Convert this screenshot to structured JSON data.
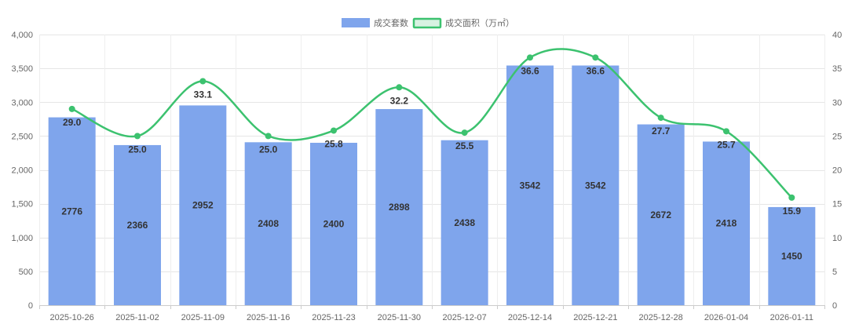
{
  "chart_data": {
    "type": "bar",
    "categories": [
      "2025-10-26",
      "2025-11-02",
      "2025-11-09",
      "2025-11-16",
      "2025-11-23",
      "2025-11-30",
      "2025-12-07",
      "2025-12-14",
      "2025-12-21",
      "2025-12-28",
      "2026-01-04",
      "2026-01-11"
    ],
    "series": [
      {
        "name": "成交套数",
        "type": "bar",
        "axis": "left",
        "color": "#7fa5ec",
        "values": [
          2776,
          2366,
          2952,
          2408,
          2400,
          2898,
          2438,
          3542,
          3542,
          2672,
          2418,
          1450
        ]
      },
      {
        "name": "成交面积（万㎡）",
        "type": "line",
        "axis": "right",
        "color": "#3cc26f",
        "values": [
          29.0,
          25.0,
          33.1,
          25.0,
          25.8,
          32.2,
          25.5,
          36.6,
          36.6,
          27.7,
          25.7,
          15.9
        ],
        "value_labels": [
          "29.0",
          "25.0",
          "33.1",
          "25.0",
          "25.8",
          "32.2",
          "25.5",
          "36.6",
          "36.6",
          "27.7",
          "25.7",
          "15.9"
        ]
      }
    ],
    "y_left": {
      "range": [
        0,
        4000
      ],
      "ticks": [
        0,
        500,
        1000,
        1500,
        2000,
        2500,
        3000,
        3500,
        4000
      ],
      "tick_labels": [
        "0",
        "500",
        "1,000",
        "1,500",
        "2,000",
        "2,500",
        "3,000",
        "3,500",
        "4,000"
      ]
    },
    "y_right": {
      "range": [
        0,
        40
      ],
      "ticks": [
        0,
        5,
        10,
        15,
        20,
        25,
        30,
        35,
        40
      ],
      "tick_labels": [
        "0",
        "5",
        "10",
        "15",
        "20",
        "25",
        "30",
        "35",
        "40"
      ]
    },
    "grid": true,
    "legend_position": "top-center",
    "line_smooth": true
  }
}
